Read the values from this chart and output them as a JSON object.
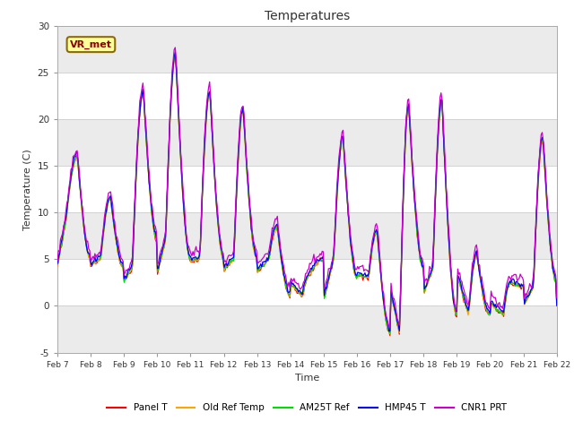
{
  "title": "Temperatures",
  "xlabel": "Time",
  "ylabel": "Temperature (C)",
  "ylim": [
    -5,
    30
  ],
  "series": {
    "Panel T": {
      "color": "#ff0000"
    },
    "Old Ref Temp": {
      "color": "#ffa500"
    },
    "AM25T Ref": {
      "color": "#00dd00"
    },
    "HMP45 T": {
      "color": "#0000ff"
    },
    "CNR1 PRT": {
      "color": "#cc00cc"
    }
  },
  "xtick_labels": [
    "Feb 7",
    "Feb 8",
    "Feb 9",
    "Feb 10",
    "Feb 11",
    "Feb 12",
    "Feb 13",
    "Feb 14",
    "Feb 15",
    "Feb 16",
    "Feb 17",
    "Feb 18",
    "Feb 19",
    "Feb 20",
    "Feb 21",
    "Feb 22"
  ],
  "ytick_values": [
    -5,
    0,
    5,
    10,
    15,
    20,
    25,
    30
  ],
  "annotation_text": "VR_met",
  "annotation_box_color": "#ffff99",
  "annotation_border_color": "#8B6914",
  "fig_bg": "#ffffff",
  "plot_bg": "#ffffff",
  "band_color_light": "#ebebeb",
  "band_color_white": "#ffffff",
  "grid_color": "#cccccc"
}
